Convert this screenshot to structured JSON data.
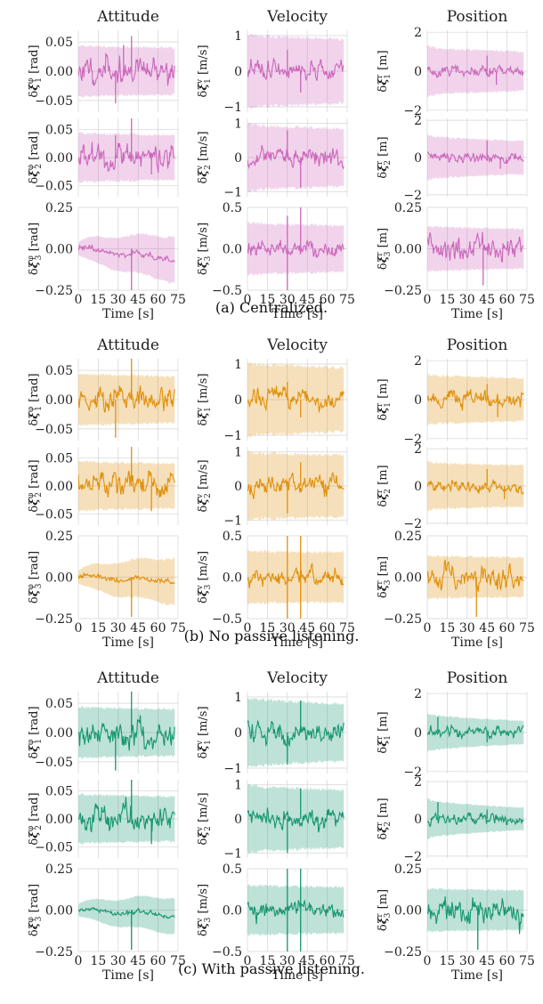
{
  "figure": {
    "column_titles": [
      "Attitude",
      "Velocity",
      "Position"
    ],
    "captions": [
      "(a) Centralized.",
      "(b) No passive listening.",
      "(c) With passive listening."
    ],
    "xlabel": "Time [s]",
    "colors": {
      "centralized": "#cc66bb",
      "no_passive": "#e0900a",
      "with_passive": "#149670",
      "grid": "#d4d4d4",
      "axes": "#444444"
    }
  },
  "chart_data": {
    "type": "line",
    "x_range": [
      0,
      75
    ],
    "xticks": [
      0,
      15,
      30,
      45,
      60,
      75
    ],
    "xlabel": "Time [s]",
    "grid": true,
    "blocks": [
      {
        "caption": "(a) Centralized.",
        "color": "#cc66bb",
        "series": [
          "estimation error",
          "covariance bound"
        ],
        "panels": [
          {
            "title": "Attitude",
            "ylabel": "δξ^φ_1 [rad]",
            "yticks": [
              "0.05",
              "0.00",
              "−0.05"
            ],
            "ytick_values": [
              0.05,
              0,
              -0.05
            ],
            "ylim": [
              -0.07,
              0.07
            ],
            "band": [
              0.045,
              0.04
            ],
            "noise": 0.009,
            "spikes": [
              [
                28,
                -0.055
              ],
              [
                40,
                0.06
              ],
              [
                34,
                0.045
              ]
            ],
            "drift": 0
          },
          {
            "title": "Velocity",
            "ylabel": "δξ^v_1 [m/s]",
            "yticks": [
              "1",
              "0",
              "−1"
            ],
            "ytick_values": [
              1,
              0,
              -1
            ],
            "ylim": [
              -1.15,
              1.15
            ],
            "band": [
              1.05,
              0.9
            ],
            "noise": 0.12,
            "spikes": [
              [
                30,
                0.6
              ],
              [
                40,
                -0.6
              ]
            ],
            "drift": 0
          },
          {
            "title": "Position",
            "ylabel": "δξ^r_1 [m]",
            "yticks": [
              "2",
              "0",
              "−2"
            ],
            "ytick_values": [
              2,
              0,
              -2
            ],
            "ylim": [
              -2.1,
              2.1
            ],
            "band": [
              1.3,
              1.0
            ],
            "noise": 0.12,
            "spikes": [
              [
                45,
                0.8
              ],
              [
                52,
                -0.7
              ]
            ],
            "drift": 0
          },
          {
            "title": "Attitude",
            "ylabel": "δξ^φ_2 [rad]",
            "yticks": [
              "0.05",
              "0.00",
              "−0.05"
            ],
            "ytick_values": [
              0.05,
              0,
              -0.05
            ],
            "ylim": [
              -0.07,
              0.07
            ],
            "band": [
              0.045,
              0.04
            ],
            "noise": 0.009,
            "spikes": [
              [
                28,
                0.04
              ],
              [
                40,
                0.07
              ],
              [
                55,
                -0.03
              ]
            ],
            "drift": 0
          },
          {
            "title": "Velocity",
            "ylabel": "δξ^v_2 [m/s]",
            "yticks": [
              "1",
              "0",
              "−1"
            ],
            "ytick_values": [
              1,
              0,
              -1
            ],
            "ylim": [
              -1.15,
              1.15
            ],
            "band": [
              1.0,
              0.85
            ],
            "noise": 0.12,
            "spikes": [
              [
                30,
                0.8
              ],
              [
                40,
                -0.9
              ]
            ],
            "drift": 0
          },
          {
            "title": "Position",
            "ylabel": "δξ^r_2 [m]",
            "yticks": [
              "2",
              "0",
              "−2"
            ],
            "ytick_values": [
              2,
              0,
              -2
            ],
            "ylim": [
              -2.1,
              2.1
            ],
            "band": [
              1.2,
              0.9
            ],
            "noise": 0.12,
            "spikes": [
              [
                45,
                0.9
              ],
              [
                55,
                -0.6
              ]
            ],
            "drift": 0
          },
          {
            "title": "Attitude",
            "ylabel": "δξ^φ_3 [rad]",
            "yticks": [
              "0.25",
              "0.00",
              "−0.25"
            ],
            "ytick_values": [
              0.25,
              0,
              -0.25
            ],
            "ylim": [
              -0.25,
              0.25
            ],
            "band": [
              0.03,
              0.14
            ],
            "noise": 0.008,
            "spikes": [
              [
                40,
                -0.25
              ]
            ],
            "drift": -0.06
          },
          {
            "title": "Velocity",
            "ylabel": "δξ^v_3 [m/s]",
            "yticks": [
              "0.5",
              "0.0",
              "−0.5"
            ],
            "ytick_values": [
              0.5,
              0,
              -0.5
            ],
            "ylim": [
              -0.5,
              0.5
            ],
            "band": [
              0.32,
              0.28
            ],
            "noise": 0.04,
            "spikes": [
              [
                30,
                -0.5
              ],
              [
                40,
                0.5
              ],
              [
                30,
                0.4
              ]
            ],
            "drift": 0
          },
          {
            "title": "Position",
            "ylabel": "δξ^r_3 [m]",
            "yticks": [
              "0.25",
              "0.00",
              "−0.25"
            ],
            "ytick_values": [
              0.25,
              0,
              -0.25
            ],
            "ylim": [
              -0.25,
              0.25
            ],
            "band": [
              0.14,
              0.12
            ],
            "noise": 0.03,
            "spikes": [
              [
                42,
                -0.22
              ]
            ],
            "drift": 0
          }
        ]
      },
      {
        "caption": "(b) No passive listening.",
        "color": "#e0900a",
        "series": [
          "estimation error",
          "covariance bound"
        ],
        "panels": [
          {
            "title": "Attitude",
            "ylabel": "δξ^φ_1 [rad]",
            "yticks": [
              "0.05",
              "0.00",
              "−0.05"
            ],
            "ytick_values": [
              0.05,
              0,
              -0.05
            ],
            "ylim": [
              -0.07,
              0.07
            ],
            "band": [
              0.045,
              0.04
            ],
            "noise": 0.009,
            "spikes": [
              [
                28,
                -0.065
              ],
              [
                40,
                0.07
              ]
            ],
            "drift": 0
          },
          {
            "title": "Velocity",
            "ylabel": "δξ^v_1 [m/s]",
            "yticks": [
              "1",
              "0",
              "−1"
            ],
            "ytick_values": [
              1,
              0,
              -1
            ],
            "ylim": [
              -1.15,
              1.15
            ],
            "band": [
              1.05,
              0.9
            ],
            "noise": 0.12,
            "spikes": [
              [
                30,
                0.5
              ],
              [
                40,
                -0.5
              ]
            ],
            "drift": 0
          },
          {
            "title": "Position",
            "ylabel": "δξ^r_1 [m]",
            "yticks": [
              "2",
              "0",
              "−2"
            ],
            "ytick_values": [
              2,
              0,
              -2
            ],
            "ylim": [
              -2.1,
              2.1
            ],
            "band": [
              1.3,
              1.1
            ],
            "noise": 0.18,
            "spikes": [
              [
                45,
                0.8
              ],
              [
                53,
                -0.9
              ]
            ],
            "drift": 0
          },
          {
            "title": "Attitude",
            "ylabel": "δξ^φ_2 [rad]",
            "yticks": [
              "0.05",
              "0.00",
              "−0.05"
            ],
            "ytick_values": [
              0.05,
              0,
              -0.05
            ],
            "ylim": [
              -0.07,
              0.07
            ],
            "band": [
              0.045,
              0.04
            ],
            "noise": 0.009,
            "spikes": [
              [
                40,
                0.075
              ],
              [
                55,
                -0.045
              ]
            ],
            "drift": 0
          },
          {
            "title": "Velocity",
            "ylabel": "δξ^v_2 [m/s]",
            "yticks": [
              "1",
              "0",
              "−1"
            ],
            "ytick_values": [
              1,
              0,
              -1
            ],
            "ylim": [
              -1.15,
              1.15
            ],
            "band": [
              1.0,
              0.9
            ],
            "noise": 0.12,
            "spikes": [
              [
                30,
                -0.8
              ],
              [
                40,
                0.7
              ]
            ],
            "drift": 0
          },
          {
            "title": "Position",
            "ylabel": "δξ^r_2 [m]",
            "yticks": [
              "2",
              "0",
              "−2"
            ],
            "ytick_values": [
              2,
              0,
              -2
            ],
            "ylim": [
              -2.1,
              2.1
            ],
            "band": [
              1.3,
              1.1
            ],
            "noise": 0.12,
            "spikes": [
              [
                45,
                0.9
              ],
              [
                58,
                -0.7
              ]
            ],
            "drift": 0
          },
          {
            "title": "Attitude",
            "ylabel": "δξ^φ_3 [rad]",
            "yticks": [
              "0.25",
              "0.00",
              "−0.25"
            ],
            "ytick_values": [
              0.25,
              0,
              -0.25
            ],
            "ylim": [
              -0.25,
              0.25
            ],
            "band": [
              0.03,
              0.14
            ],
            "noise": 0.007,
            "spikes": [
              [
                40,
                -0.24
              ]
            ],
            "drift": -0.02
          },
          {
            "title": "Velocity",
            "ylabel": "δξ^v_3 [m/s]",
            "yticks": [
              "0.5",
              "0.0",
              "−0.5"
            ],
            "ytick_values": [
              0.5,
              0,
              -0.5
            ],
            "ylim": [
              -0.5,
              0.5
            ],
            "band": [
              0.32,
              0.3
            ],
            "noise": 0.04,
            "spikes": [
              [
                30,
                -0.5
              ],
              [
                30,
                0.5
              ],
              [
                40,
                -0.5
              ],
              [
                40,
                0.5
              ]
            ],
            "drift": 0
          },
          {
            "title": "Position",
            "ylabel": "δξ^r_3 [m]",
            "yticks": [
              "0.25",
              "0.00",
              "−0.25"
            ],
            "ytick_values": [
              0.25,
              0,
              -0.25
            ],
            "ylim": [
              -0.25,
              0.25
            ],
            "band": [
              0.13,
              0.12
            ],
            "noise": 0.03,
            "spikes": [
              [
                37,
                -0.24
              ]
            ],
            "drift": 0
          }
        ]
      },
      {
        "caption": "(c) With passive listening.",
        "color": "#149670",
        "series": [
          "estimation error",
          "covariance bound"
        ],
        "panels": [
          {
            "title": "Attitude",
            "ylabel": "δξ^φ_1 [rad]",
            "yticks": [
              "0.05",
              "0.00",
              "−0.05"
            ],
            "ytick_values": [
              0.05,
              0,
              -0.05
            ],
            "ylim": [
              -0.07,
              0.07
            ],
            "band": [
              0.045,
              0.04
            ],
            "noise": 0.009,
            "spikes": [
              [
                28,
                -0.065
              ],
              [
                40,
                0.07
              ]
            ],
            "drift": 0
          },
          {
            "title": "Velocity",
            "ylabel": "δξ^v_1 [m/s]",
            "yticks": [
              "1",
              "0",
              "−1"
            ],
            "ytick_values": [
              1,
              0,
              -1
            ],
            "ylim": [
              -1.15,
              1.15
            ],
            "band": [
              1.0,
              0.8
            ],
            "noise": 0.12,
            "spikes": [
              [
                30,
                -0.9
              ],
              [
                40,
                0.9
              ]
            ],
            "drift": 0
          },
          {
            "title": "Position",
            "ylabel": "δξ^r_1 [m]",
            "yticks": [
              "2",
              "0",
              "−2"
            ],
            "ytick_values": [
              2,
              0,
              -2
            ],
            "ylim": [
              -2.1,
              2.1
            ],
            "band": [
              1.0,
              0.6
            ],
            "noise": 0.12,
            "spikes": [
              [
                8,
                0.8
              ],
              [
                45,
                -0.5
              ]
            ],
            "drift": 0
          },
          {
            "title": "Attitude",
            "ylabel": "δξ^φ_2 [rad]",
            "yticks": [
              "0.05",
              "0.00",
              "−0.05"
            ],
            "ytick_values": [
              0.05,
              0,
              -0.05
            ],
            "ylim": [
              -0.07,
              0.07
            ],
            "band": [
              0.045,
              0.04
            ],
            "noise": 0.009,
            "spikes": [
              [
                40,
                0.075
              ],
              [
                55,
                -0.045
              ]
            ],
            "drift": 0
          },
          {
            "title": "Velocity",
            "ylabel": "δξ^v_2 [m/s]",
            "yticks": [
              "1",
              "0",
              "−1"
            ],
            "ytick_values": [
              1,
              0,
              -1
            ],
            "ylim": [
              -1.15,
              1.15
            ],
            "band": [
              1.0,
              0.85
            ],
            "noise": 0.12,
            "spikes": [
              [
                30,
                -1.0
              ],
              [
                40,
                0.9
              ]
            ],
            "drift": 0
          },
          {
            "title": "Position",
            "ylabel": "δξ^r_2 [m]",
            "yticks": [
              "2",
              "0",
              "−2"
            ],
            "ytick_values": [
              2,
              0,
              -2
            ],
            "ylim": [
              -2.1,
              2.1
            ],
            "band": [
              1.1,
              0.6
            ],
            "noise": 0.12,
            "spikes": [
              [
                8,
                0.9
              ],
              [
                45,
                0.5
              ]
            ],
            "drift": 0
          },
          {
            "title": "Attitude",
            "ylabel": "δξ^φ_3 [rad]",
            "yticks": [
              "0.25",
              "0.00",
              "−0.25"
            ],
            "ytick_values": [
              0.25,
              0,
              -0.25
            ],
            "ylim": [
              -0.25,
              0.25
            ],
            "band": [
              0.03,
              0.11
            ],
            "noise": 0.006,
            "spikes": [
              [
                40,
                -0.24
              ]
            ],
            "drift": -0.03
          },
          {
            "title": "Velocity",
            "ylabel": "δξ^v_3 [m/s]",
            "yticks": [
              "0.5",
              "0.0",
              "−0.5"
            ],
            "ytick_values": [
              0.5,
              0,
              -0.5
            ],
            "ylim": [
              -0.5,
              0.5
            ],
            "band": [
              0.3,
              0.28
            ],
            "noise": 0.04,
            "spikes": [
              [
                30,
                -0.5
              ],
              [
                30,
                0.5
              ],
              [
                40,
                -0.5
              ],
              [
                40,
                0.5
              ]
            ],
            "drift": 0
          },
          {
            "title": "Position",
            "ylabel": "δξ^r_3 [m]",
            "yticks": [
              "0.25",
              "0.00",
              "−0.25"
            ],
            "ytick_values": [
              0.25,
              0,
              -0.25
            ],
            "ylim": [
              -0.25,
              0.25
            ],
            "band": [
              0.13,
              0.12
            ],
            "noise": 0.03,
            "spikes": [
              [
                38,
                -0.24
              ]
            ],
            "drift": 0
          }
        ]
      }
    ]
  }
}
